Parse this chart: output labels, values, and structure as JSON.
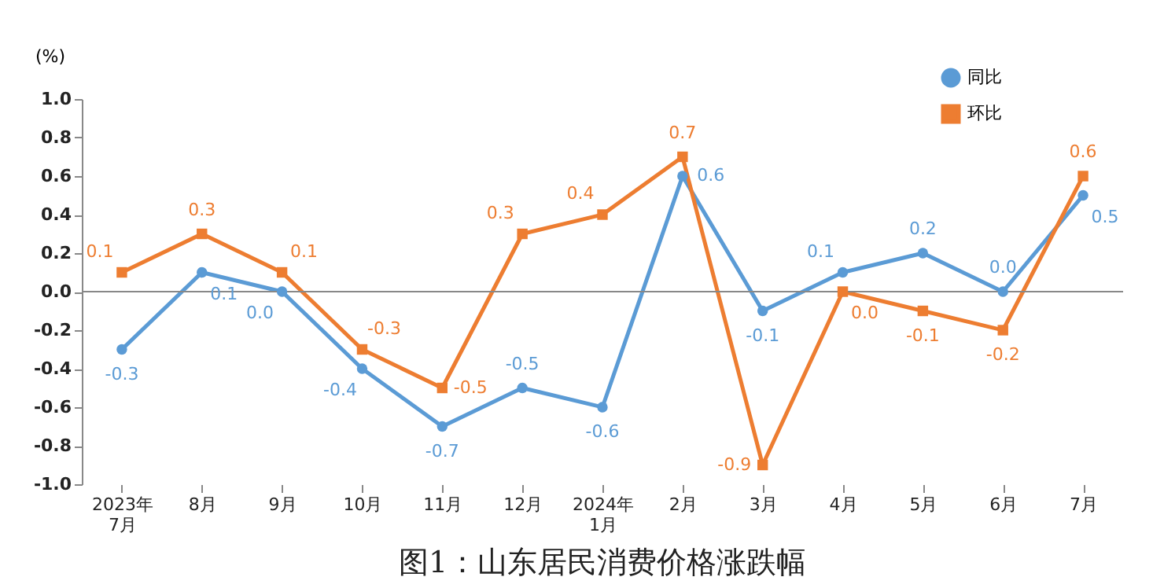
{
  "chart_data": {
    "type": "line",
    "title": "图1：山东居民消费价格涨跌幅",
    "ylabel": "(%)",
    "categories": [
      "2023年\n7月",
      "8月",
      "9月",
      "10月",
      "11月",
      "12月",
      "2024年\n1月",
      "2月",
      "3月",
      "4月",
      "5月",
      "6月",
      "7月"
    ],
    "series": [
      {
        "name": "同比",
        "color": "#5b9bd5",
        "marker": "circle",
        "values": [
          -0.3,
          0.1,
          0.0,
          -0.4,
          -0.7,
          -0.5,
          -0.6,
          0.6,
          -0.1,
          0.1,
          0.2,
          0.0,
          0.5
        ],
        "value_labels": [
          "-0.3",
          "0.1",
          "0.0",
          "-0.4",
          "-0.7",
          "-0.5",
          "-0.6",
          "0.6",
          "-0.1",
          "0.1",
          "0.2",
          "0.0",
          "0.5"
        ]
      },
      {
        "name": "环比",
        "color": "#ed7d31",
        "marker": "square",
        "values": [
          0.1,
          0.3,
          0.1,
          -0.3,
          -0.5,
          0.3,
          0.4,
          0.7,
          -0.9,
          0.0,
          -0.1,
          -0.2,
          0.6
        ],
        "value_labels": [
          "0.1",
          "0.3",
          "0.1",
          "-0.3",
          "-0.5",
          "0.3",
          "0.4",
          "0.7",
          "-0.9",
          "0.0",
          "-0.1",
          "-0.2",
          "0.6"
        ]
      }
    ],
    "ylim": [
      -1.0,
      1.0
    ],
    "yticks": [
      {
        "value": -1.0,
        "label": "-1.0"
      },
      {
        "value": -0.8,
        "label": "-0.8"
      },
      {
        "value": -0.6,
        "label": "-0.6"
      },
      {
        "value": -0.4,
        "label": "-0.4"
      },
      {
        "value": -0.2,
        "label": "-0.2"
      },
      {
        "value": 0,
        "label": "0.0"
      },
      {
        "value": 0.2,
        "label": "0.2"
      },
      {
        "value": 0.4,
        "label": "0.4"
      },
      {
        "value": 0.6,
        "label": "0.6"
      },
      {
        "value": 0.8,
        "label": "0.8"
      },
      {
        "value": 1.0,
        "label": "1.0"
      }
    ],
    "ref_lines": [
      {
        "axis": "y",
        "value": 0
      }
    ],
    "grid": false,
    "legend": "top right",
    "line_style": "solid"
  }
}
